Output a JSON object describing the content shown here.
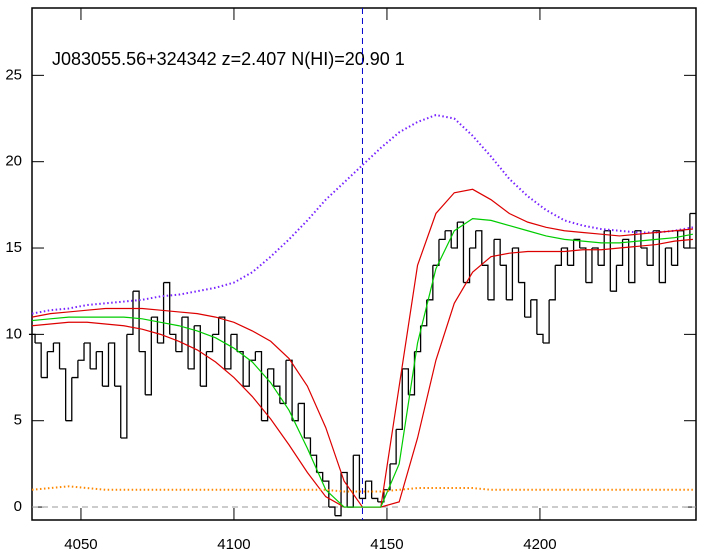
{
  "chart_data": {
    "type": "line",
    "title": "J083055.56+324342 z=2.407 N(HI)=20.90 1",
    "xlim": [
      4034,
      4251
    ],
    "ylim": [
      -0.75,
      28.9
    ],
    "xticks": [
      4050,
      4100,
      4150,
      4200
    ],
    "yticks": [
      0,
      5,
      10,
      15,
      20,
      25
    ],
    "vlines": [
      {
        "x": 4142,
        "color": "#0000cc",
        "style": "dashed"
      }
    ],
    "hlines": [
      {
        "y": 0,
        "color": "#999999",
        "style": "dashed"
      }
    ],
    "series": [
      {
        "color": "#000000",
        "style": "step",
        "x": [
          4034,
          4036,
          4038,
          4040,
          4042,
          4044,
          4046,
          4048,
          4050,
          4052,
          4054,
          4056,
          4058,
          4060,
          4062,
          4064,
          4066,
          4068,
          4070,
          4072,
          4074,
          4076,
          4078,
          4080,
          4082,
          4084,
          4086,
          4088,
          4090,
          4092,
          4094,
          4096,
          4098,
          4100,
          4102,
          4104,
          4106,
          4108,
          4110,
          4112,
          4114,
          4116,
          4118,
          4120,
          4122,
          4124,
          4126,
          4128,
          4130,
          4132,
          4134,
          4136,
          4138,
          4140,
          4142,
          4144,
          4146,
          4148,
          4150,
          4152,
          4154,
          4156,
          4158,
          4160,
          4162,
          4164,
          4166,
          4168,
          4170,
          4172,
          4174,
          4176,
          4178,
          4180,
          4182,
          4184,
          4186,
          4188,
          4190,
          4192,
          4194,
          4196,
          4198,
          4200,
          4202,
          4204,
          4206,
          4208,
          4210,
          4212,
          4214,
          4216,
          4218,
          4220,
          4222,
          4224,
          4226,
          4228,
          4230,
          4232,
          4234,
          4236,
          4238,
          4240,
          4242,
          4244,
          4246,
          4248,
          4250
        ],
        "values": [
          10,
          9.5,
          7.5,
          9,
          9.5,
          8,
          5,
          7.5,
          8.5,
          9.5,
          8,
          9,
          7,
          9.5,
          7,
          4,
          10,
          12.5,
          9,
          6.5,
          11,
          9.5,
          13,
          10,
          9,
          11,
          8,
          10.5,
          7,
          9,
          10,
          11,
          8,
          10,
          9,
          7,
          8.5,
          9,
          5,
          8,
          7,
          6,
          8.5,
          5,
          6,
          4,
          3,
          2,
          1.5,
          0,
          -0.5,
          2,
          0,
          3,
          0.5,
          1.5,
          0.5,
          0.3,
          1,
          2.5,
          4.5,
          8,
          6.5,
          9,
          10.5,
          12,
          14,
          15.5,
          16,
          15,
          16.5,
          13,
          15,
          16,
          14,
          12,
          15.5,
          14,
          12,
          15,
          13,
          11,
          12,
          10,
          9.5,
          12,
          14,
          15,
          14,
          15.5,
          15,
          13,
          15,
          14,
          16,
          12.5,
          14,
          15.5,
          13,
          16,
          15,
          14,
          16,
          13,
          15,
          14,
          16,
          15,
          17
        ]
      },
      {
        "color": "#7722ff",
        "style": "dotted",
        "x": [
          4034,
          4040,
          4046,
          4052,
          4058,
          4064,
          4070,
          4076,
          4082,
          4088,
          4094,
          4100,
          4106,
          4112,
          4118,
          4124,
          4130,
          4136,
          4142,
          4148,
          4154,
          4160,
          4166,
          4172,
          4178,
          4184,
          4190,
          4196,
          4202,
          4208,
          4214,
          4220,
          4226,
          4232,
          4238,
          4244,
          4250
        ],
        "values": [
          11.2,
          11.4,
          11.5,
          11.7,
          11.8,
          11.9,
          12.0,
          12.2,
          12.3,
          12.5,
          12.7,
          13.0,
          13.6,
          14.5,
          15.5,
          16.6,
          17.8,
          18.8,
          19.8,
          20.8,
          21.7,
          22.3,
          22.7,
          22.5,
          21.5,
          20.3,
          19.0,
          18.0,
          17.2,
          16.6,
          16.3,
          16.1,
          16.0,
          15.9,
          15.9,
          16.0,
          16.2
        ]
      },
      {
        "color": "#dd0000",
        "style": "solid",
        "x": [
          4034,
          4040,
          4046,
          4052,
          4058,
          4064,
          4070,
          4076,
          4082,
          4088,
          4094,
          4100,
          4106,
          4112,
          4118,
          4124,
          4130,
          4136,
          4142,
          4148,
          4154,
          4160,
          4166,
          4172,
          4178,
          4184,
          4190,
          4196,
          4202,
          4208,
          4214,
          4220,
          4226,
          4232,
          4238,
          4244,
          4250
        ],
        "values": [
          11.0,
          11.2,
          11.3,
          11.4,
          11.5,
          11.5,
          11.5,
          11.4,
          11.3,
          11.2,
          11.0,
          10.7,
          10.2,
          9.6,
          8.6,
          7.0,
          4.6,
          1.5,
          0,
          0,
          7.0,
          14.0,
          17.0,
          18.2,
          18.4,
          17.8,
          17.0,
          16.5,
          16.2,
          16.0,
          15.9,
          15.8,
          15.7,
          15.8,
          15.9,
          16.0,
          16.1
        ]
      },
      {
        "color": "#dd0000",
        "style": "solid",
        "x": [
          4034,
          4040,
          4046,
          4052,
          4058,
          4064,
          4070,
          4076,
          4082,
          4088,
          4094,
          4100,
          4106,
          4112,
          4118,
          4124,
          4130,
          4136,
          4142,
          4148,
          4154,
          4160,
          4166,
          4172,
          4178,
          4184,
          4190,
          4196,
          4202,
          4208,
          4214,
          4220,
          4226,
          4232,
          4238,
          4244,
          4250
        ],
        "values": [
          10.5,
          10.6,
          10.7,
          10.7,
          10.6,
          10.5,
          10.3,
          10.0,
          9.6,
          9.1,
          8.4,
          7.5,
          6.4,
          5.1,
          3.6,
          2.0,
          0.6,
          0,
          0,
          0,
          0.3,
          4.0,
          8.5,
          11.8,
          13.6,
          14.5,
          14.7,
          14.8,
          14.8,
          14.8,
          14.9,
          14.9,
          15.0,
          15.1,
          15.2,
          15.4,
          15.5
        ]
      },
      {
        "color": "#00cc00",
        "style": "solid",
        "x": [
          4034,
          4040,
          4046,
          4052,
          4058,
          4064,
          4070,
          4076,
          4082,
          4088,
          4094,
          4100,
          4106,
          4112,
          4118,
          4124,
          4130,
          4136,
          4142,
          4148,
          4154,
          4160,
          4166,
          4172,
          4178,
          4184,
          4190,
          4196,
          4202,
          4208,
          4214,
          4220,
          4226,
          4232,
          4238,
          4244,
          4250
        ],
        "values": [
          10.8,
          10.9,
          11.0,
          11.0,
          11.0,
          11.0,
          10.9,
          10.7,
          10.5,
          10.2,
          9.8,
          9.2,
          8.4,
          7.2,
          5.6,
          3.4,
          1.0,
          0,
          0,
          0,
          2.5,
          9.5,
          13.8,
          16.0,
          16.7,
          16.6,
          16.3,
          16.0,
          15.7,
          15.5,
          15.4,
          15.3,
          15.3,
          15.4,
          15.5,
          15.6,
          15.8
        ]
      },
      {
        "color": "#ff8800",
        "style": "dotted",
        "x": [
          4034,
          4040,
          4046,
          4052,
          4058,
          4064,
          4070,
          4076,
          4082,
          4088,
          4094,
          4100,
          4106,
          4112,
          4118,
          4124,
          4130,
          4136,
          4142,
          4148,
          4154,
          4160,
          4166,
          4172,
          4178,
          4184,
          4190,
          4196,
          4202,
          4208,
          4214,
          4220,
          4226,
          4232,
          4238,
          4244,
          4250
        ],
        "values": [
          1.0,
          1.1,
          1.2,
          1.1,
          1.0,
          1.0,
          1.0,
          1.0,
          1.0,
          1.0,
          1.0,
          1.0,
          1.0,
          1.0,
          1.0,
          1.0,
          1.0,
          0.9,
          0.9,
          0.9,
          1.0,
          1.1,
          1.1,
          1.1,
          1.1,
          1.0,
          1.0,
          1.0,
          1.0,
          1.0,
          1.0,
          1.0,
          1.0,
          1.0,
          1.0,
          1.0,
          1.0
        ]
      }
    ]
  }
}
